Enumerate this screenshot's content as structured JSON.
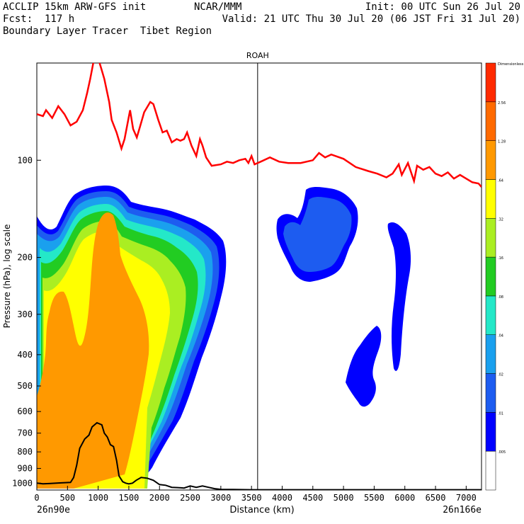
{
  "header": {
    "line1_left": "ACCLIP 15km ARW-GFS init",
    "line1_mid": "NCAR/MMM",
    "line1_right": "Init: 00 UTC Sun 26 Jul 20",
    "line2_left": "Fcst:  117 h",
    "line2_right": "Valid: 21 UTC Thu 30 Jul 20 (06 JST Fri 31 Jul 20)",
    "line3_left": "Boundary Layer Tracer  Tibet Region"
  },
  "chart_data": {
    "type": "contour-cross-section",
    "station_label": "ROAH",
    "station_distance_km": 3600,
    "xlabel": "Distance (km)",
    "ylabel": "Pressure (hPa), log scale",
    "x_start_label": "26n90e",
    "x_end_label": "26n166e",
    "xlim": [
      0,
      7250
    ],
    "ylim": [
      1050,
      50
    ],
    "y_scale": "log",
    "x_ticks": [
      0,
      500,
      1000,
      1500,
      2000,
      2500,
      3000,
      3500,
      4000,
      4500,
      5000,
      5500,
      6000,
      6500,
      7000
    ],
    "y_ticks": [
      100,
      200,
      300,
      400,
      500,
      600,
      700,
      800,
      900,
      1000
    ],
    "colorbar": {
      "levels": [
        ".005",
        ".01",
        ".02",
        ".04",
        ".08",
        ".16",
        ".32",
        ".64",
        "1.28",
        "2.56",
        "Dimensionless"
      ],
      "colors": [
        "#ffffff",
        "#0000ff",
        "#1d5cf0",
        "#1aa0ee",
        "#24e8c8",
        "#22cc22",
        "#aaee22",
        "#ffff00",
        "#ff9900",
        "#ff6a00",
        "#ff2a00"
      ]
    },
    "tropopause_line": {
      "color": "#ff0000",
      "x": [
        0,
        100,
        150,
        250,
        350,
        450,
        550,
        650,
        750,
        820,
        870,
        920,
        980,
        1050,
        1100,
        1180,
        1220,
        1300,
        1380,
        1430,
        1520,
        1570,
        1630,
        1680,
        1750,
        1850,
        1900,
        1980,
        2050,
        2120,
        2200,
        2280,
        2340,
        2400,
        2450,
        2520,
        2600,
        2660,
        2700,
        2760,
        2850,
        3000,
        3100,
        3200,
        3300,
        3400,
        3450,
        3500,
        3550,
        3650,
        3800,
        3950,
        4100,
        4300,
        4500,
        4600,
        4700,
        4800,
        5000,
        5200,
        5400,
        5550,
        5700,
        5800,
        5900,
        5950,
        6050,
        6150,
        6200,
        6300,
        6400,
        6500,
        6600,
        6700,
        6800,
        6900,
        7000,
        7100,
        7200,
        7250
      ],
      "y": [
        72,
        73,
        70,
        74,
        68,
        72,
        78,
        76,
        70,
        62,
        56,
        50,
        47,
        52,
        56,
        66,
        75,
        82,
        92,
        86,
        70,
        80,
        85,
        79,
        71,
        66,
        67,
        75,
        82,
        81,
        88,
        86,
        87,
        86,
        82,
        90,
        97,
        86,
        90,
        98,
        104,
        103,
        101,
        102,
        100,
        99,
        102,
        97,
        103,
        101,
        98,
        101,
        102,
        102,
        100,
        95,
        98,
        96,
        99,
        105,
        108,
        110,
        113,
        110,
        103,
        111,
        102,
        116,
        104,
        107,
        105,
        110,
        112,
        109,
        114,
        111,
        114,
        117,
        118,
        121
      ]
    },
    "terrain_line": {
      "color": "#000000",
      "x": [
        0,
        100,
        200,
        400,
        550,
        600,
        650,
        700,
        780,
        850,
        900,
        980,
        1060,
        1100,
        1150,
        1200,
        1250,
        1300,
        1340,
        1400,
        1450,
        1500,
        1560,
        1620,
        1700,
        1800,
        1900,
        2000,
        2100,
        2200,
        2300,
        2400,
        2500,
        2600,
        2700,
        2800,
        2900,
        3000,
        3200,
        3500,
        4000,
        4500,
        5000,
        5500,
        6000,
        6500,
        7000,
        7250
      ],
      "y": [
        1000,
        1005,
        1003,
        998,
        995,
        960,
        880,
        780,
        730,
        710,
        670,
        650,
        660,
        700,
        720,
        760,
        770,
        850,
        950,
        990,
        1000,
        1005,
        1000,
        980,
        960,
        965,
        980,
        1010,
        1015,
        1030,
        1032,
        1035,
        1020,
        1030,
        1020,
        1030,
        1040,
        1045,
        1046,
        1048,
        1048,
        1048,
        1048,
        1048,
        1048,
        1048,
        1048,
        1048
      ]
    }
  }
}
